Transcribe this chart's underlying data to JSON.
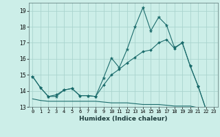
{
  "xlabel": "Humidex (Indice chaleur)",
  "bg_color": "#cceee8",
  "grid_color": "#aad4ce",
  "line_color": "#1a6b6b",
  "xlim": [
    -0.5,
    23.5
  ],
  "ylim": [
    13.0,
    19.5
  ],
  "yticks": [
    13,
    14,
    15,
    16,
    17,
    18,
    19
  ],
  "xticks": [
    0,
    1,
    2,
    3,
    4,
    5,
    6,
    7,
    8,
    9,
    10,
    11,
    12,
    13,
    14,
    15,
    16,
    17,
    18,
    19,
    20,
    21,
    22,
    23
  ],
  "series1_x": [
    0,
    1,
    2,
    3,
    4,
    5,
    6,
    7,
    8,
    9,
    10,
    11,
    12,
    13,
    14,
    15,
    16,
    17,
    18,
    19,
    20,
    21,
    22,
    23
  ],
  "series1_y": [
    14.9,
    14.2,
    13.65,
    13.65,
    14.05,
    14.15,
    13.7,
    13.7,
    13.65,
    14.8,
    16.05,
    15.45,
    16.6,
    18.0,
    19.2,
    17.75,
    18.6,
    18.1,
    16.7,
    17.0,
    15.55,
    14.3,
    12.85,
    12.85
  ],
  "series2_x": [
    0,
    1,
    2,
    3,
    4,
    5,
    6,
    7,
    8,
    9,
    10,
    11,
    12,
    13,
    14,
    15,
    16,
    17,
    18,
    19,
    20,
    21,
    22,
    23
  ],
  "series2_y": [
    14.9,
    14.2,
    13.65,
    13.75,
    14.05,
    14.15,
    13.7,
    13.7,
    13.65,
    14.35,
    15.0,
    15.35,
    15.75,
    16.1,
    16.45,
    16.55,
    17.0,
    17.2,
    16.65,
    17.0,
    15.55,
    14.3,
    12.85,
    12.85
  ],
  "series3_x": [
    0,
    1,
    2,
    3,
    4,
    5,
    6,
    7,
    8,
    9,
    10,
    11,
    12,
    13,
    14,
    15,
    16,
    17,
    18,
    19,
    20,
    21,
    22,
    23
  ],
  "series3_y": [
    13.5,
    13.4,
    13.35,
    13.35,
    13.35,
    13.35,
    13.35,
    13.35,
    13.35,
    13.3,
    13.25,
    13.25,
    13.25,
    13.2,
    13.15,
    13.15,
    13.15,
    13.1,
    13.05,
    13.05,
    13.05,
    12.95,
    12.87,
    12.87
  ]
}
